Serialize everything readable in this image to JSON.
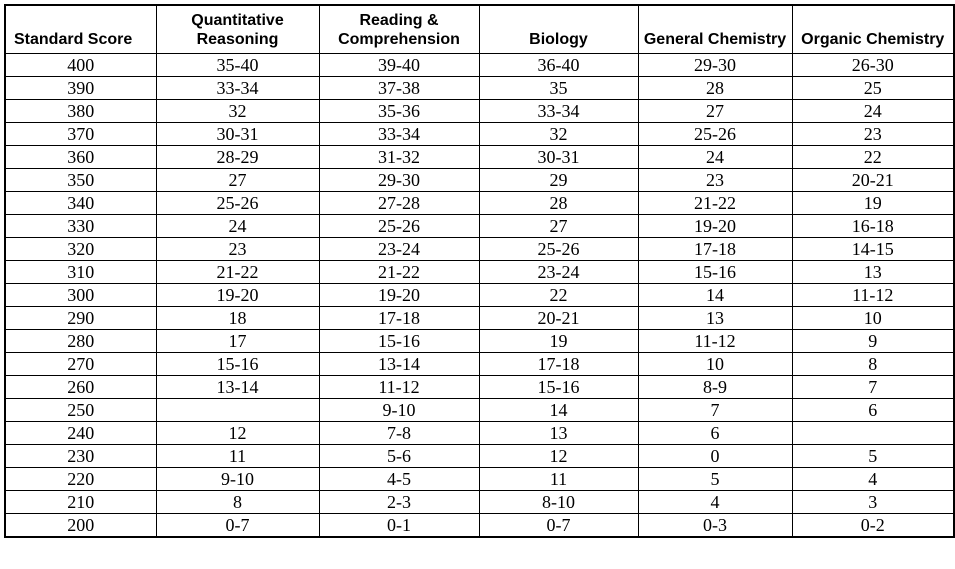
{
  "table": {
    "columns": [
      "Standard Score",
      "Quantitative Reasoning",
      "Reading & Comprehension",
      "Biology",
      "General Chemistry",
      "Organic Chemistry"
    ],
    "rows": [
      [
        "400",
        "35-40",
        "39-40",
        "36-40",
        "29-30",
        "26-30"
      ],
      [
        "390",
        "33-34",
        "37-38",
        "35",
        "28",
        "25"
      ],
      [
        "380",
        "32",
        "35-36",
        "33-34",
        "27",
        "24"
      ],
      [
        "370",
        "30-31",
        "33-34",
        "32",
        "25-26",
        "23"
      ],
      [
        "360",
        "28-29",
        "31-32",
        "30-31",
        "24",
        "22"
      ],
      [
        "350",
        "27",
        "29-30",
        "29",
        "23",
        "20-21"
      ],
      [
        "340",
        "25-26",
        "27-28",
        "28",
        "21-22",
        "19"
      ],
      [
        "330",
        "24",
        "25-26",
        "27",
        "19-20",
        "16-18"
      ],
      [
        "320",
        "23",
        "23-24",
        "25-26",
        "17-18",
        "14-15"
      ],
      [
        "310",
        "21-22",
        "21-22",
        "23-24",
        "15-16",
        "13"
      ],
      [
        "300",
        "19-20",
        "19-20",
        "22",
        "14",
        "11-12"
      ],
      [
        "290",
        "18",
        "17-18",
        "20-21",
        "13",
        "10"
      ],
      [
        "280",
        "17",
        "15-16",
        "19",
        "11-12",
        "9"
      ],
      [
        "270",
        "15-16",
        "13-14",
        "17-18",
        "10",
        "8"
      ],
      [
        "260",
        "13-14",
        "11-12",
        "15-16",
        "8-9",
        "7"
      ],
      [
        "250",
        "",
        "9-10",
        "14",
        "7",
        "6"
      ],
      [
        "240",
        "12",
        "7-8",
        "13",
        "6",
        ""
      ],
      [
        "230",
        "11",
        "5-6",
        "12",
        "0",
        "5"
      ],
      [
        "220",
        "9-10",
        "4-5",
        "11",
        "5",
        "4"
      ],
      [
        "210",
        "8",
        "2-3",
        "8-10",
        "4",
        "3"
      ],
      [
        "200",
        "0-7",
        "0-1",
        "0-7",
        "0-3",
        "0-2"
      ]
    ],
    "colors": {
      "border": "#000000",
      "text": "#000000",
      "background": "#ffffff"
    }
  }
}
